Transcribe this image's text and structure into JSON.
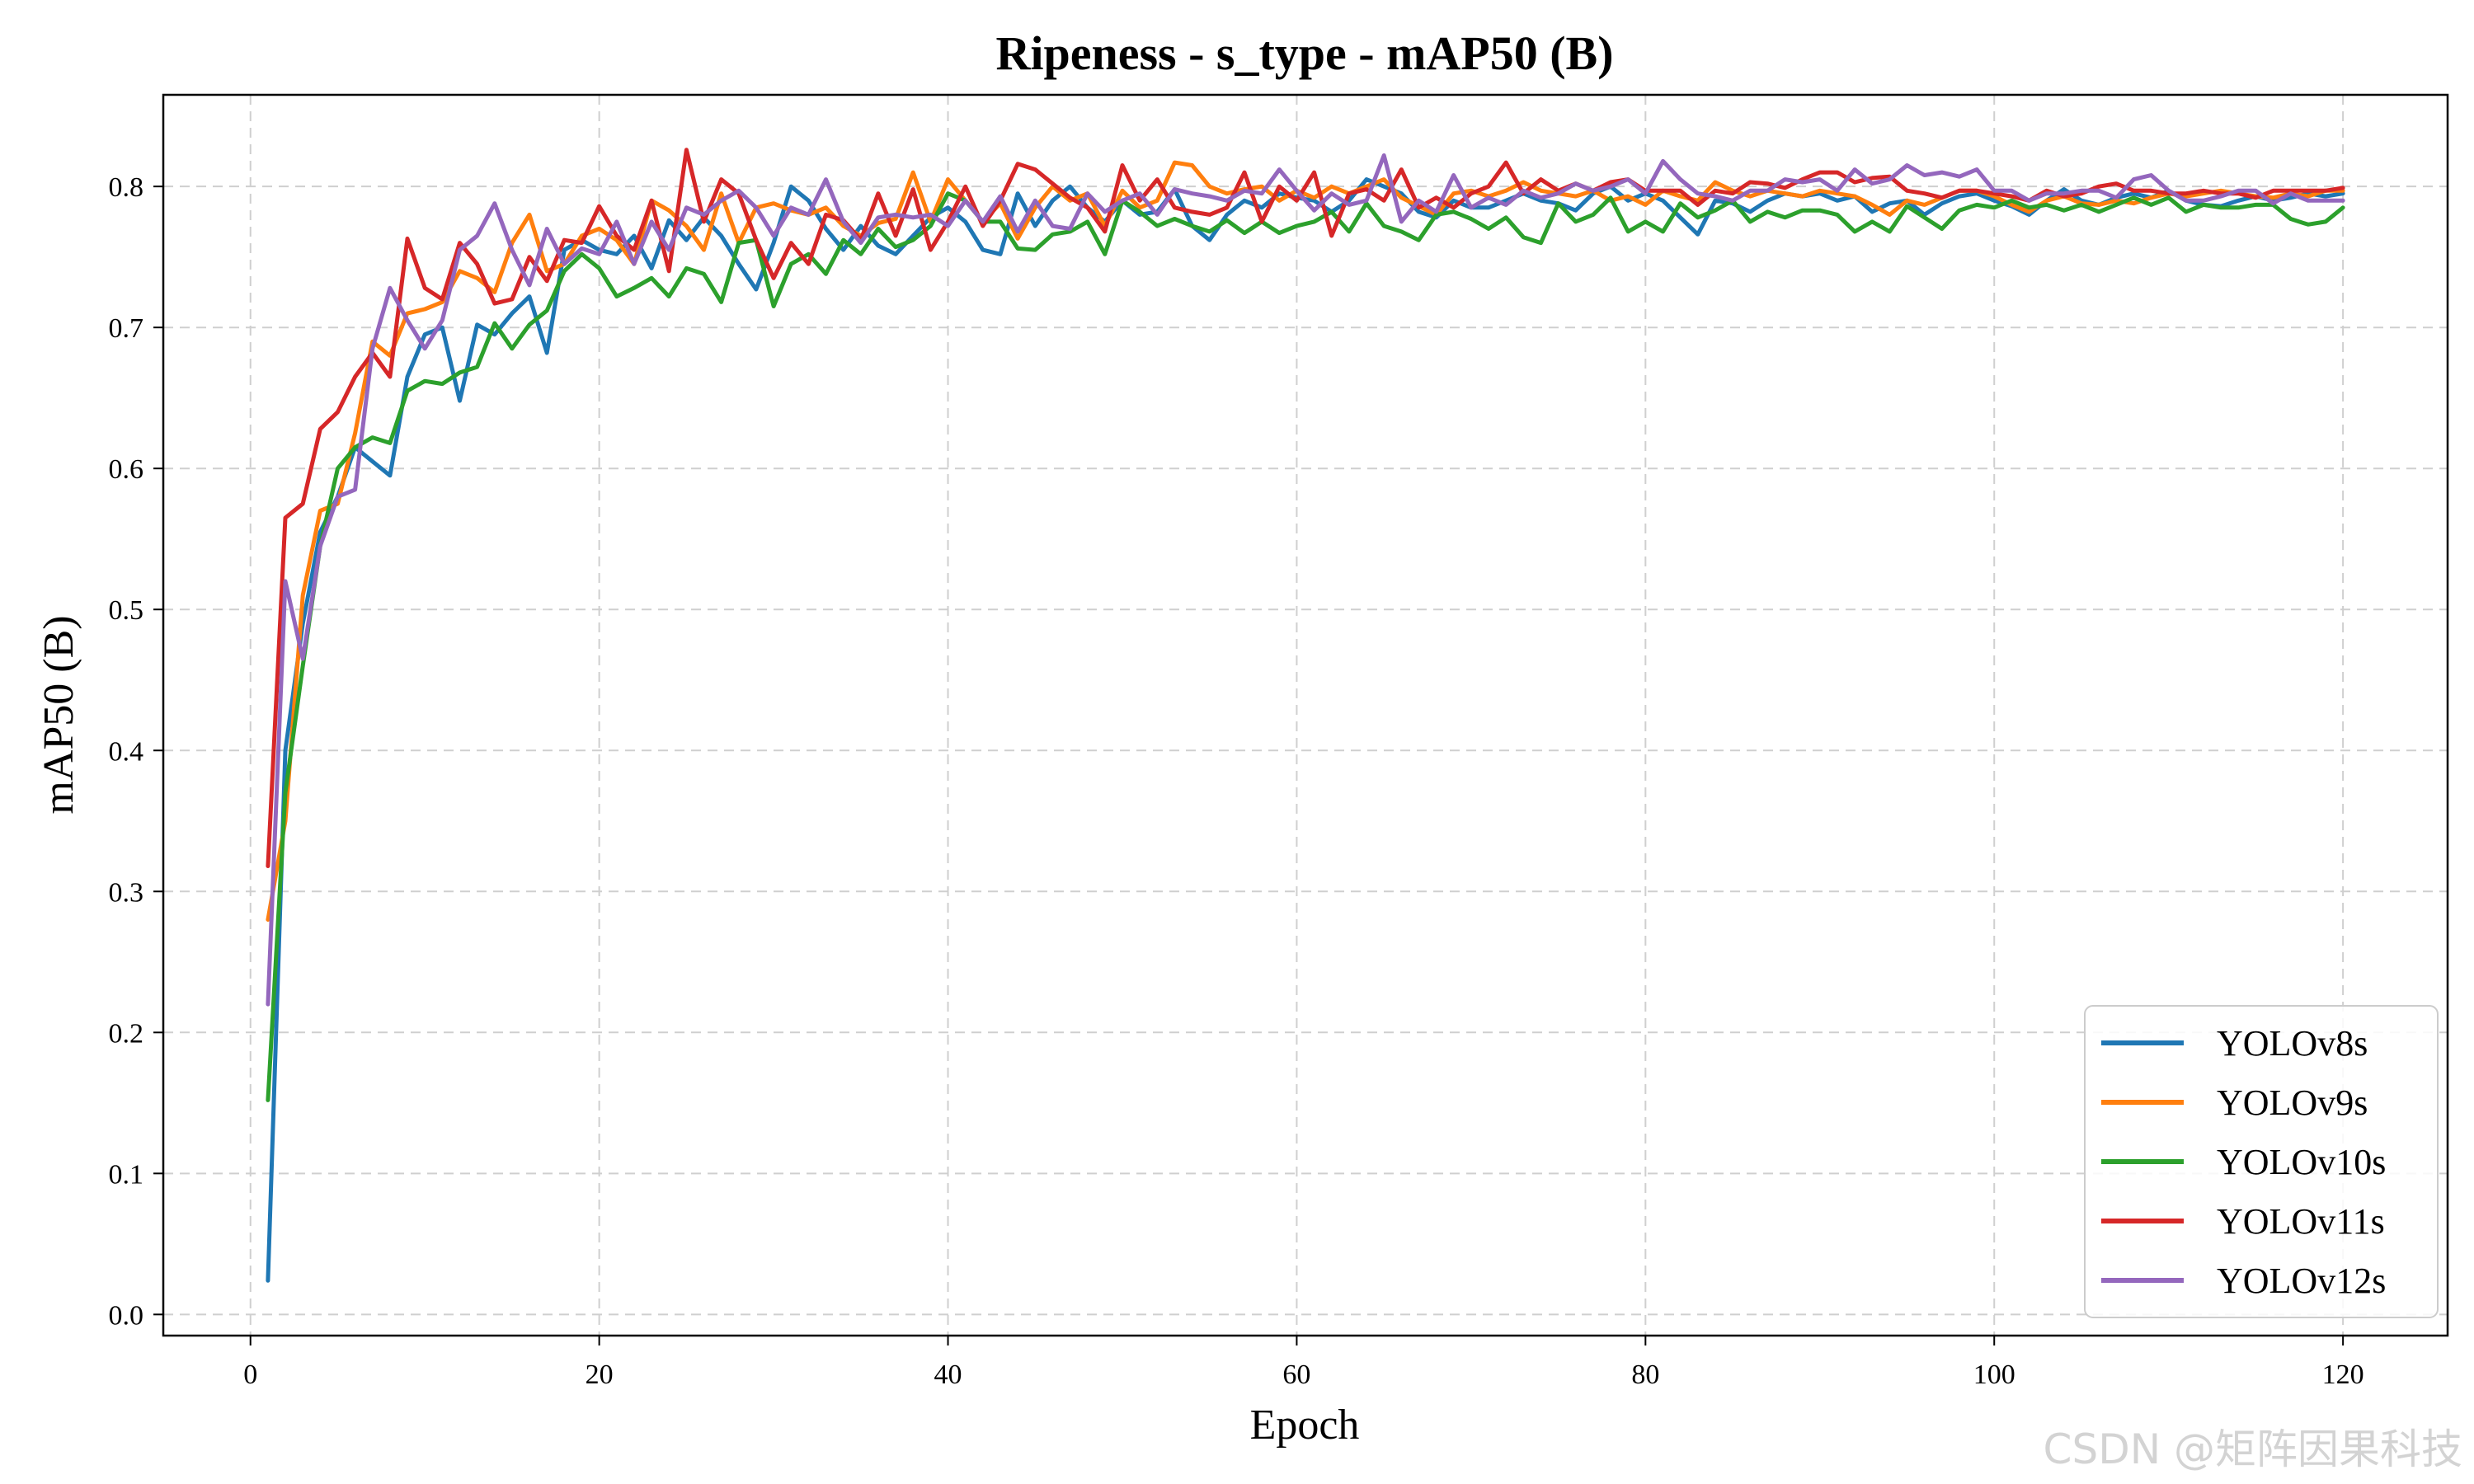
{
  "chart_data": {
    "type": "line",
    "title": "Ripeness - s_type - mAP50 (B)",
    "xlabel": "Epoch",
    "ylabel": "mAP50 (B)",
    "xlim": [
      -5,
      126
    ],
    "ylim": [
      -0.015,
      0.865
    ],
    "xticks": [
      0,
      20,
      40,
      60,
      80,
      100,
      120
    ],
    "yticks": [
      0.0,
      0.1,
      0.2,
      0.3,
      0.4,
      0.5,
      0.6,
      0.7,
      0.8
    ],
    "grid": true,
    "legend_position": "lower-right",
    "series": [
      {
        "name": "YOLOv8s",
        "color": "#1f77b4",
        "values": [
          0.024,
          0.4,
          0.49,
          0.555,
          0.58,
          0.615,
          0.605,
          0.595,
          0.665,
          0.695,
          0.7,
          0.648,
          0.702,
          0.695,
          0.71,
          0.722,
          0.682,
          0.755,
          0.762,
          0.755,
          0.752,
          0.765,
          0.742,
          0.776,
          0.762,
          0.778,
          0.765,
          0.745,
          0.727,
          0.76,
          0.8,
          0.79,
          0.77,
          0.755,
          0.772,
          0.758,
          0.752,
          0.765,
          0.778,
          0.785,
          0.775,
          0.755,
          0.752,
          0.795,
          0.772,
          0.79,
          0.8,
          0.785,
          0.775,
          0.79,
          0.78,
          0.782,
          0.798,
          0.772,
          0.762,
          0.78,
          0.79,
          0.785,
          0.795,
          0.792,
          0.79,
          0.782,
          0.79,
          0.805,
          0.8,
          0.795,
          0.782,
          0.778,
          0.79,
          0.785,
          0.785,
          0.79,
          0.795,
          0.79,
          0.788,
          0.783,
          0.795,
          0.8,
          0.79,
          0.795,
          0.79,
          0.778,
          0.766,
          0.79,
          0.788,
          0.782,
          0.79,
          0.795,
          0.793,
          0.795,
          0.79,
          0.793,
          0.782,
          0.788,
          0.79,
          0.78,
          0.788,
          0.793,
          0.795,
          0.79,
          0.786,
          0.78,
          0.79,
          0.798,
          0.79,
          0.787,
          0.792,
          0.795,
          0.792,
          0.797,
          0.79,
          0.787,
          0.786,
          0.79,
          0.793,
          0.79,
          0.792,
          0.795,
          0.793,
          0.795
        ]
      },
      {
        "name": "YOLOv9s",
        "color": "#ff7f0e",
        "values": [
          0.28,
          0.35,
          0.51,
          0.57,
          0.575,
          0.625,
          0.69,
          0.68,
          0.71,
          0.713,
          0.718,
          0.74,
          0.735,
          0.725,
          0.76,
          0.78,
          0.74,
          0.745,
          0.765,
          0.77,
          0.762,
          0.745,
          0.79,
          0.783,
          0.772,
          0.755,
          0.795,
          0.76,
          0.785,
          0.788,
          0.783,
          0.78,
          0.785,
          0.772,
          0.765,
          0.774,
          0.777,
          0.81,
          0.775,
          0.805,
          0.79,
          0.775,
          0.788,
          0.763,
          0.785,
          0.8,
          0.79,
          0.795,
          0.772,
          0.797,
          0.785,
          0.79,
          0.817,
          0.815,
          0.8,
          0.795,
          0.798,
          0.8,
          0.79,
          0.797,
          0.792,
          0.8,
          0.795,
          0.8,
          0.805,
          0.792,
          0.786,
          0.78,
          0.795,
          0.797,
          0.793,
          0.797,
          0.803,
          0.797,
          0.795,
          0.793,
          0.797,
          0.79,
          0.793,
          0.787,
          0.797,
          0.793,
          0.79,
          0.803,
          0.797,
          0.793,
          0.797,
          0.795,
          0.793,
          0.797,
          0.795,
          0.793,
          0.787,
          0.78,
          0.79,
          0.787,
          0.792,
          0.797,
          0.797,
          0.793,
          0.787,
          0.782,
          0.79,
          0.793,
          0.788,
          0.787,
          0.79,
          0.788,
          0.792,
          0.795,
          0.793,
          0.795,
          0.797,
          0.795,
          0.793,
          0.792,
          0.795,
          0.793,
          0.797,
          0.797
        ]
      },
      {
        "name": "YOLOv10s",
        "color": "#2ca02c",
        "values": [
          0.152,
          0.37,
          0.46,
          0.545,
          0.6,
          0.615,
          0.622,
          0.618,
          0.655,
          0.662,
          0.66,
          0.668,
          0.672,
          0.703,
          0.685,
          0.702,
          0.712,
          0.74,
          0.752,
          0.742,
          0.722,
          0.728,
          0.735,
          0.722,
          0.742,
          0.738,
          0.718,
          0.76,
          0.762,
          0.715,
          0.745,
          0.752,
          0.738,
          0.762,
          0.752,
          0.77,
          0.757,
          0.762,
          0.772,
          0.795,
          0.79,
          0.775,
          0.775,
          0.756,
          0.755,
          0.766,
          0.768,
          0.775,
          0.752,
          0.79,
          0.782,
          0.772,
          0.777,
          0.772,
          0.768,
          0.776,
          0.767,
          0.775,
          0.767,
          0.772,
          0.775,
          0.782,
          0.768,
          0.788,
          0.772,
          0.768,
          0.762,
          0.78,
          0.782,
          0.777,
          0.77,
          0.778,
          0.764,
          0.76,
          0.788,
          0.775,
          0.78,
          0.792,
          0.768,
          0.775,
          0.768,
          0.788,
          0.778,
          0.783,
          0.79,
          0.775,
          0.782,
          0.778,
          0.783,
          0.783,
          0.78,
          0.768,
          0.775,
          0.768,
          0.786,
          0.778,
          0.77,
          0.783,
          0.787,
          0.785,
          0.79,
          0.785,
          0.787,
          0.783,
          0.787,
          0.782,
          0.787,
          0.792,
          0.787,
          0.792,
          0.782,
          0.787,
          0.785,
          0.785,
          0.787,
          0.787,
          0.777,
          0.773,
          0.775,
          0.785
        ]
      },
      {
        "name": "YOLOv11s",
        "color": "#d62728",
        "values": [
          0.318,
          0.565,
          0.575,
          0.628,
          0.64,
          0.665,
          0.682,
          0.665,
          0.763,
          0.728,
          0.72,
          0.76,
          0.745,
          0.717,
          0.72,
          0.75,
          0.733,
          0.762,
          0.76,
          0.786,
          0.765,
          0.755,
          0.79,
          0.74,
          0.826,
          0.775,
          0.805,
          0.795,
          0.762,
          0.735,
          0.76,
          0.745,
          0.78,
          0.776,
          0.762,
          0.795,
          0.765,
          0.798,
          0.755,
          0.775,
          0.8,
          0.772,
          0.79,
          0.816,
          0.812,
          0.802,
          0.792,
          0.785,
          0.768,
          0.815,
          0.79,
          0.805,
          0.785,
          0.782,
          0.78,
          0.785,
          0.81,
          0.775,
          0.8,
          0.79,
          0.81,
          0.765,
          0.795,
          0.798,
          0.79,
          0.812,
          0.785,
          0.792,
          0.785,
          0.795,
          0.8,
          0.817,
          0.795,
          0.805,
          0.797,
          0.802,
          0.797,
          0.803,
          0.805,
          0.797,
          0.797,
          0.797,
          0.787,
          0.797,
          0.795,
          0.803,
          0.802,
          0.799,
          0.805,
          0.81,
          0.81,
          0.803,
          0.806,
          0.807,
          0.797,
          0.795,
          0.792,
          0.797,
          0.797,
          0.795,
          0.793,
          0.79,
          0.797,
          0.793,
          0.795,
          0.8,
          0.802,
          0.797,
          0.797,
          0.795,
          0.795,
          0.797,
          0.795,
          0.795,
          0.792,
          0.797,
          0.797,
          0.797,
          0.797,
          0.799
        ]
      },
      {
        "name": "YOLOv12s",
        "color": "#9467bd",
        "values": [
          0.22,
          0.52,
          0.465,
          0.545,
          0.58,
          0.585,
          0.685,
          0.728,
          0.705,
          0.685,
          0.705,
          0.755,
          0.765,
          0.788,
          0.755,
          0.73,
          0.77,
          0.745,
          0.756,
          0.752,
          0.775,
          0.745,
          0.775,
          0.755,
          0.785,
          0.78,
          0.79,
          0.797,
          0.785,
          0.765,
          0.785,
          0.78,
          0.805,
          0.775,
          0.76,
          0.778,
          0.78,
          0.778,
          0.78,
          0.772,
          0.79,
          0.775,
          0.793,
          0.768,
          0.79,
          0.772,
          0.77,
          0.795,
          0.782,
          0.79,
          0.795,
          0.78,
          0.798,
          0.795,
          0.793,
          0.79,
          0.797,
          0.795,
          0.812,
          0.797,
          0.783,
          0.795,
          0.787,
          0.79,
          0.822,
          0.775,
          0.79,
          0.782,
          0.808,
          0.785,
          0.792,
          0.787,
          0.797,
          0.792,
          0.795,
          0.802,
          0.797,
          0.8,
          0.805,
          0.795,
          0.818,
          0.805,
          0.795,
          0.793,
          0.79,
          0.797,
          0.797,
          0.805,
          0.803,
          0.805,
          0.797,
          0.812,
          0.802,
          0.805,
          0.815,
          0.808,
          0.81,
          0.807,
          0.812,
          0.797,
          0.797,
          0.79,
          0.795,
          0.795,
          0.797,
          0.797,
          0.792,
          0.805,
          0.808,
          0.797,
          0.79,
          0.79,
          0.793,
          0.797,
          0.797,
          0.788,
          0.795,
          0.79,
          0.79,
          0.79
        ]
      }
    ]
  },
  "watermark": "CSDN @矩阵因果科技"
}
